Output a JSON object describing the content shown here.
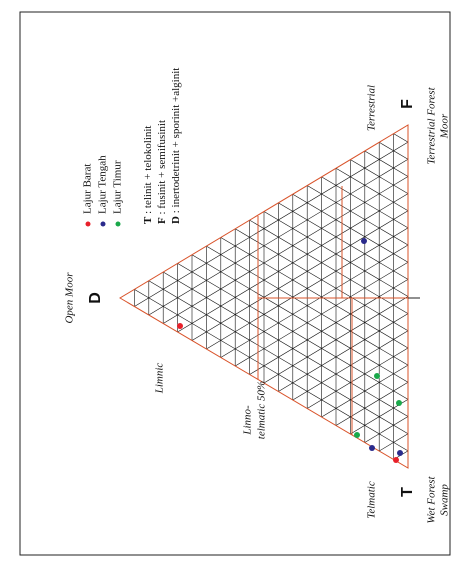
{
  "labels": {
    "open_moor": "Open Moor",
    "d": "D",
    "limnic": "Limnic",
    "linno": "Linno-",
    "telmatic50": "telmatic 50%",
    "telmatic": "Telmatic",
    "t": "T",
    "wet1": "Wet Forest",
    "wet2": "Swamp",
    "terrestrial": "Terrestrial",
    "f": "F",
    "tfm1": "Terrestrial Forest",
    "tfm2": "Moor"
  },
  "legend": [
    {
      "label": "Lajur Barat",
      "color": "#e8202a"
    },
    {
      "label": "Lajur Tengah",
      "color": "#2a2a8c"
    },
    {
      "label": "Lajur Timur",
      "color": "#1aa84a"
    }
  ],
  "key": [
    {
      "letter": "T",
      "text": " : telinit + telokolinit"
    },
    {
      "letter": "F",
      "text": " : fusinit + semifusinit"
    },
    {
      "letter": "D",
      "text": " : inertodetrinit + sporinit +alginit"
    }
  ]
}
